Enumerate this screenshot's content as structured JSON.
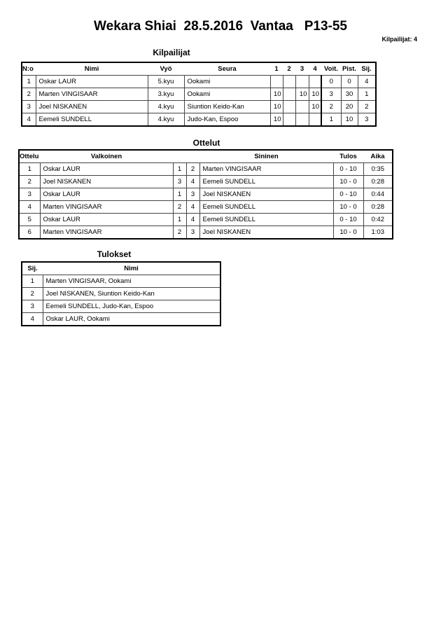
{
  "title": "Wekara Shiai  28.5.2016  Vantaa   P13-55",
  "competitor_count": "Kilpailijat: 4",
  "competitors": {
    "heading": "Kilpailijat",
    "headers": [
      "N:o",
      "Nimi",
      "Vyö",
      "Seura",
      "1",
      "2",
      "3",
      "4",
      "Voit.",
      "Pist.",
      "Sij."
    ],
    "rows": [
      [
        "1",
        "Oskar LAUR",
        "5.kyu",
        "Ookami",
        "",
        "",
        "",
        "",
        "0",
        "0",
        "4"
      ],
      [
        "2",
        "Marten VINGISAAR",
        "3.kyu",
        "Ookami",
        "10",
        "",
        "10",
        "10",
        "3",
        "30",
        "1"
      ],
      [
        "3",
        "Joel NISKANEN",
        "4.kyu",
        "Siuntion Keido-Kan",
        "10",
        "",
        "",
        "10",
        "2",
        "20",
        "2"
      ],
      [
        "4",
        "Eemeli SUNDELL",
        "4.kyu",
        "Judo-Kan, Espoo",
        "10",
        "",
        "",
        "",
        "1",
        "10",
        "3"
      ]
    ]
  },
  "matches": {
    "heading": "Ottelut",
    "headers": [
      "Ottelu",
      "Valkoinen",
      "Sininen",
      "Tulos",
      "Aika"
    ],
    "rows": [
      [
        "1",
        "Oskar LAUR",
        "1",
        "2",
        "Marten VINGISAAR",
        "0 - 10",
        "0:35"
      ],
      [
        "2",
        "Joel NISKANEN",
        "3",
        "4",
        "Eemeli SUNDELL",
        "10 - 0",
        "0:28"
      ],
      [
        "3",
        "Oskar LAUR",
        "1",
        "3",
        "Joel NISKANEN",
        "0 - 10",
        "0:44"
      ],
      [
        "4",
        "Marten VINGISAAR",
        "2",
        "4",
        "Eemeli SUNDELL",
        "10 - 0",
        "0:28"
      ],
      [
        "5",
        "Oskar LAUR",
        "1",
        "4",
        "Eemeli SUNDELL",
        "0 - 10",
        "0:42"
      ],
      [
        "6",
        "Marten VINGISAAR",
        "2",
        "3",
        "Joel NISKANEN",
        "10 - 0",
        "1:03"
      ]
    ]
  },
  "results": {
    "heading": "Tulokset",
    "headers": [
      "Sij.",
      "Nimi"
    ],
    "rows": [
      [
        "1",
        "Marten VINGISAAR, Ookami"
      ],
      [
        "2",
        "Joel NISKANEN, Siuntion Keido-Kan"
      ],
      [
        "3",
        "Eemeli SUNDELL, Judo-Kan, Espoo"
      ],
      [
        "4",
        "Oskar LAUR, Ookami"
      ]
    ]
  }
}
